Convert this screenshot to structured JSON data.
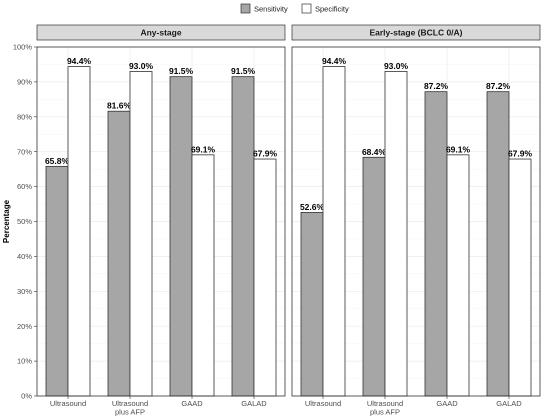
{
  "chart_data": {
    "type": "bar",
    "ylabel": "Percentage",
    "xlabel": "",
    "ylim": [
      0,
      100
    ],
    "y_ticks": [
      "0%",
      "10%",
      "20%",
      "30%",
      "40%",
      "50%",
      "60%",
      "70%",
      "80%",
      "90%",
      "100%"
    ],
    "grid": true,
    "legend_position": "top",
    "categories": [
      [
        "Ultrasound"
      ],
      [
        "Ultrasound",
        "plus AFP"
      ],
      [
        "GAAD"
      ],
      [
        "GALAD"
      ]
    ],
    "series_styles": [
      {
        "name": "Sensitivity",
        "color": "#a6a6a6"
      },
      {
        "name": "Specificity",
        "color": "#ffffff"
      }
    ],
    "panels": [
      {
        "title": "Any-stage",
        "series": [
          {
            "name": "Sensitivity",
            "values": [
              65.8,
              81.6,
              91.5,
              91.5
            ],
            "labels": [
              "65.8%",
              "81.6%",
              "91.5%",
              "91.5%"
            ]
          },
          {
            "name": "Specificity",
            "values": [
              94.4,
              93.0,
              69.1,
              67.9
            ],
            "labels": [
              "94.4%",
              "93.0%",
              "69.1%",
              "67.9%"
            ]
          }
        ]
      },
      {
        "title": "Early-stage (BCLC 0/A)",
        "series": [
          {
            "name": "Sensitivity",
            "values": [
              52.6,
              68.4,
              87.2,
              87.2
            ],
            "labels": [
              "52.6%",
              "68.4%",
              "87.2%",
              "87.2%"
            ]
          },
          {
            "name": "Specificity",
            "values": [
              94.4,
              93.0,
              69.1,
              67.9
            ],
            "labels": [
              "94.4%",
              "93.0%",
              "69.1%",
              "67.9%"
            ]
          }
        ]
      }
    ]
  }
}
